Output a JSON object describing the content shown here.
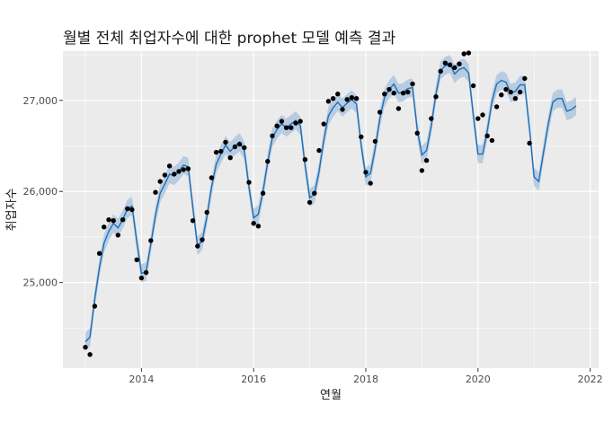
{
  "chart_data": {
    "type": "line",
    "title": "월별 전체 취업자수에 대한 prophet 모델 예측 결과",
    "xlabel": "연월",
    "ylabel": "취업자수",
    "x_ticks": [
      2014,
      2016,
      2018,
      2020,
      2022
    ],
    "y_ticks": [
      25000,
      26000,
      27000
    ],
    "y_tick_labels": [
      "25,000",
      "26,000",
      "27,000"
    ],
    "xlim": [
      2012.6,
      2022.15
    ],
    "ylim": [
      24060,
      27540
    ],
    "grid": true,
    "colors": {
      "panel": "#ebebeb",
      "grid": "#ffffff",
      "forecast_line": "#1f6fb5",
      "interval_band": "#b3c9e0",
      "points": "#000000"
    },
    "series": [
      {
        "type": "points",
        "x": [
          2013.0,
          2013.083,
          2013.167,
          2013.25,
          2013.333,
          2013.417,
          2013.5,
          2013.583,
          2013.667,
          2013.75,
          2013.833,
          2013.917,
          2014.0,
          2014.083,
          2014.167,
          2014.25,
          2014.333,
          2014.417,
          2014.5,
          2014.583,
          2014.667,
          2014.75,
          2014.833,
          2014.917,
          2015.0,
          2015.083,
          2015.167,
          2015.25,
          2015.333,
          2015.417,
          2015.5,
          2015.583,
          2015.667,
          2015.75,
          2015.833,
          2015.917,
          2016.0,
          2016.083,
          2016.167,
          2016.25,
          2016.333,
          2016.417,
          2016.5,
          2016.583,
          2016.667,
          2016.75,
          2016.833,
          2016.917,
          2017.0,
          2017.083,
          2017.167,
          2017.25,
          2017.333,
          2017.417,
          2017.5,
          2017.583,
          2017.667,
          2017.75,
          2017.833,
          2017.917,
          2018.0,
          2018.083,
          2018.167,
          2018.25,
          2018.333,
          2018.417,
          2018.5,
          2018.583,
          2018.667,
          2018.75,
          2018.833,
          2018.917,
          2019.0,
          2019.083,
          2019.167,
          2019.25,
          2019.333,
          2019.417,
          2019.5,
          2019.583,
          2019.667,
          2019.75,
          2019.833,
          2019.917,
          2020.0,
          2020.083,
          2020.167,
          2020.25,
          2020.333,
          2020.417,
          2020.5,
          2020.583,
          2020.667,
          2020.75,
          2020.833,
          2020.917
        ],
        "y": [
          24290,
          24210,
          24740,
          25320,
          25610,
          25690,
          25680,
          25520,
          25690,
          25810,
          25800,
          25250,
          25050,
          25110,
          25460,
          25990,
          26110,
          26180,
          26280,
          26190,
          26220,
          26240,
          26250,
          25680,
          25400,
          25470,
          25770,
          26150,
          26430,
          26440,
          26540,
          26370,
          26490,
          26520,
          26480,
          26100,
          25650,
          25620,
          25980,
          26330,
          26610,
          26720,
          26770,
          26700,
          26700,
          26750,
          26770,
          26350,
          25880,
          25980,
          26450,
          26740,
          26990,
          27020,
          27070,
          26900,
          27010,
          27030,
          27020,
          26600,
          26210,
          26090,
          26550,
          26870,
          27070,
          27120,
          27080,
          26910,
          27080,
          27090,
          27180,
          26640,
          26230,
          26340,
          26800,
          27040,
          27320,
          27410,
          27390,
          27360,
          27400,
          27510,
          27520,
          27160,
          26800,
          26840,
          26610,
          26560,
          26930,
          27060,
          27120,
          27090,
          27020,
          27090,
          27240,
          26530
        ]
      },
      {
        "type": "line",
        "name": "",
        "x": [
          2013.0,
          2013.083,
          2013.167,
          2013.25,
          2013.333,
          2013.417,
          2013.5,
          2013.583,
          2013.667,
          2013.75,
          2013.833,
          2013.917,
          2014.0,
          2014.083,
          2014.167,
          2014.25,
          2014.333,
          2014.417,
          2014.5,
          2014.583,
          2014.667,
          2014.75,
          2014.833,
          2014.917,
          2015.0,
          2015.083,
          2015.167,
          2015.25,
          2015.333,
          2015.417,
          2015.5,
          2015.583,
          2015.667,
          2015.75,
          2015.833,
          2015.917,
          2016.0,
          2016.083,
          2016.167,
          2016.25,
          2016.333,
          2016.417,
          2016.5,
          2016.583,
          2016.667,
          2016.75,
          2016.833,
          2016.917,
          2017.0,
          2017.083,
          2017.167,
          2017.25,
          2017.333,
          2017.417,
          2017.5,
          2017.583,
          2017.667,
          2017.75,
          2017.833,
          2017.917,
          2018.0,
          2018.083,
          2018.167,
          2018.25,
          2018.333,
          2018.417,
          2018.5,
          2018.583,
          2018.667,
          2018.75,
          2018.833,
          2018.917,
          2019.0,
          2019.083,
          2019.167,
          2019.25,
          2019.333,
          2019.417,
          2019.5,
          2019.583,
          2019.667,
          2019.75,
          2019.833,
          2019.917,
          2020.0,
          2020.083,
          2020.167,
          2020.25,
          2020.333,
          2020.417,
          2020.5,
          2020.583,
          2020.667,
          2020.75,
          2020.833,
          2020.917,
          2021.0,
          2021.083,
          2021.167,
          2021.25,
          2021.333,
          2021.417,
          2021.5,
          2021.583,
          2021.667,
          2021.75
        ],
        "y": [
          24350,
          24400,
          24820,
          25160,
          25430,
          25560,
          25650,
          25600,
          25690,
          25810,
          25840,
          25450,
          25100,
          25120,
          25420,
          25740,
          25980,
          26080,
          26190,
          26170,
          26220,
          26290,
          26270,
          25820,
          25400,
          25460,
          25720,
          26050,
          26300,
          26410,
          26510,
          26440,
          26500,
          26540,
          26450,
          26050,
          25710,
          25750,
          26000,
          26320,
          26590,
          26680,
          26740,
          26700,
          26740,
          26780,
          26720,
          26290,
          25930,
          25970,
          26220,
          26560,
          26830,
          26920,
          26980,
          26920,
          26970,
          27010,
          26960,
          26510,
          26160,
          26200,
          26470,
          26800,
          27030,
          27120,
          27180,
          27080,
          27090,
          27130,
          27140,
          26680,
          26400,
          26450,
          26720,
          27070,
          27330,
          27380,
          27400,
          27290,
          27340,
          27360,
          27300,
          26840,
          26410,
          26410,
          26670,
          26990,
          27180,
          27220,
          27200,
          27080,
          27100,
          27170,
          27170,
          26690,
          26160,
          26110,
          26430,
          26730,
          26980,
          27020,
          27020,
          26880,
          26900,
          26940
        ]
      },
      {
        "type": "band",
        "x": [
          2013.0,
          2013.083,
          2013.167,
          2013.25,
          2013.333,
          2013.417,
          2013.5,
          2013.583,
          2013.667,
          2013.75,
          2013.833,
          2013.917,
          2014.0,
          2014.083,
          2014.167,
          2014.25,
          2014.333,
          2014.417,
          2014.5,
          2014.583,
          2014.667,
          2014.75,
          2014.833,
          2014.917,
          2015.0,
          2015.083,
          2015.167,
          2015.25,
          2015.333,
          2015.417,
          2015.5,
          2015.583,
          2015.667,
          2015.75,
          2015.833,
          2015.917,
          2016.0,
          2016.083,
          2016.167,
          2016.25,
          2016.333,
          2016.417,
          2016.5,
          2016.583,
          2016.667,
          2016.75,
          2016.833,
          2016.917,
          2017.0,
          2017.083,
          2017.167,
          2017.25,
          2017.333,
          2017.417,
          2017.5,
          2017.583,
          2017.667,
          2017.75,
          2017.833,
          2017.917,
          2018.0,
          2018.083,
          2018.167,
          2018.25,
          2018.333,
          2018.417,
          2018.5,
          2018.583,
          2018.667,
          2018.75,
          2018.833,
          2018.917,
          2019.0,
          2019.083,
          2019.167,
          2019.25,
          2019.333,
          2019.417,
          2019.5,
          2019.583,
          2019.667,
          2019.75,
          2019.833,
          2019.917,
          2020.0,
          2020.083,
          2020.167,
          2020.25,
          2020.333,
          2020.417,
          2020.5,
          2020.583,
          2020.667,
          2020.75,
          2020.833,
          2020.917,
          2021.0,
          2021.083,
          2021.167,
          2021.25,
          2021.333,
          2021.417,
          2021.5,
          2021.583,
          2021.667,
          2021.75
        ],
        "lower": [
          24250,
          24300,
          24720,
          25060,
          25330,
          25460,
          25550,
          25500,
          25590,
          25710,
          25740,
          25350,
          25000,
          25020,
          25320,
          25640,
          25880,
          25980,
          26090,
          26070,
          26120,
          26190,
          26170,
          25720,
          25300,
          25360,
          25620,
          25950,
          26200,
          26310,
          26410,
          26340,
          26400,
          26440,
          26350,
          25950,
          25610,
          25650,
          25900,
          26220,
          26490,
          26580,
          26640,
          26600,
          26640,
          26680,
          26620,
          26190,
          25830,
          25870,
          26120,
          26460,
          26730,
          26820,
          26880,
          26820,
          26870,
          26910,
          26860,
          26410,
          26060,
          26100,
          26370,
          26700,
          26930,
          27020,
          27080,
          26980,
          26990,
          27030,
          27040,
          26580,
          26300,
          26350,
          26620,
          26970,
          27230,
          27280,
          27300,
          27190,
          27240,
          27260,
          27200,
          26740,
          26310,
          26310,
          26570,
          26890,
          27080,
          27120,
          27100,
          26980,
          27000,
          27070,
          27070,
          26590,
          26060,
          26010,
          26330,
          26630,
          26880,
          26920,
          26920,
          26780,
          26800,
          26840
        ],
        "upper": [
          24450,
          24500,
          24920,
          25260,
          25530,
          25660,
          25750,
          25700,
          25790,
          25910,
          25940,
          25550,
          25200,
          25220,
          25520,
          25840,
          26080,
          26180,
          26290,
          26270,
          26320,
          26390,
          26370,
          25920,
          25500,
          25560,
          25820,
          26150,
          26400,
          26510,
          26610,
          26540,
          26600,
          26640,
          26550,
          26150,
          25810,
          25850,
          26100,
          26420,
          26690,
          26780,
          26840,
          26800,
          26840,
          26880,
          26820,
          26390,
          26030,
          26070,
          26320,
          26660,
          26930,
          27020,
          27080,
          27020,
          27070,
          27110,
          27060,
          26610,
          26260,
          26300,
          26570,
          26900,
          27130,
          27220,
          27280,
          27180,
          27190,
          27230,
          27240,
          26780,
          26500,
          26550,
          26820,
          27170,
          27430,
          27480,
          27500,
          27390,
          27440,
          27460,
          27400,
          26940,
          26510,
          26510,
          26770,
          27090,
          27280,
          27320,
          27300,
          27180,
          27200,
          27270,
          27270,
          26790,
          26260,
          26210,
          26530,
          26830,
          27080,
          27120,
          27120,
          26980,
          27000,
          27040
        ]
      }
    ]
  }
}
